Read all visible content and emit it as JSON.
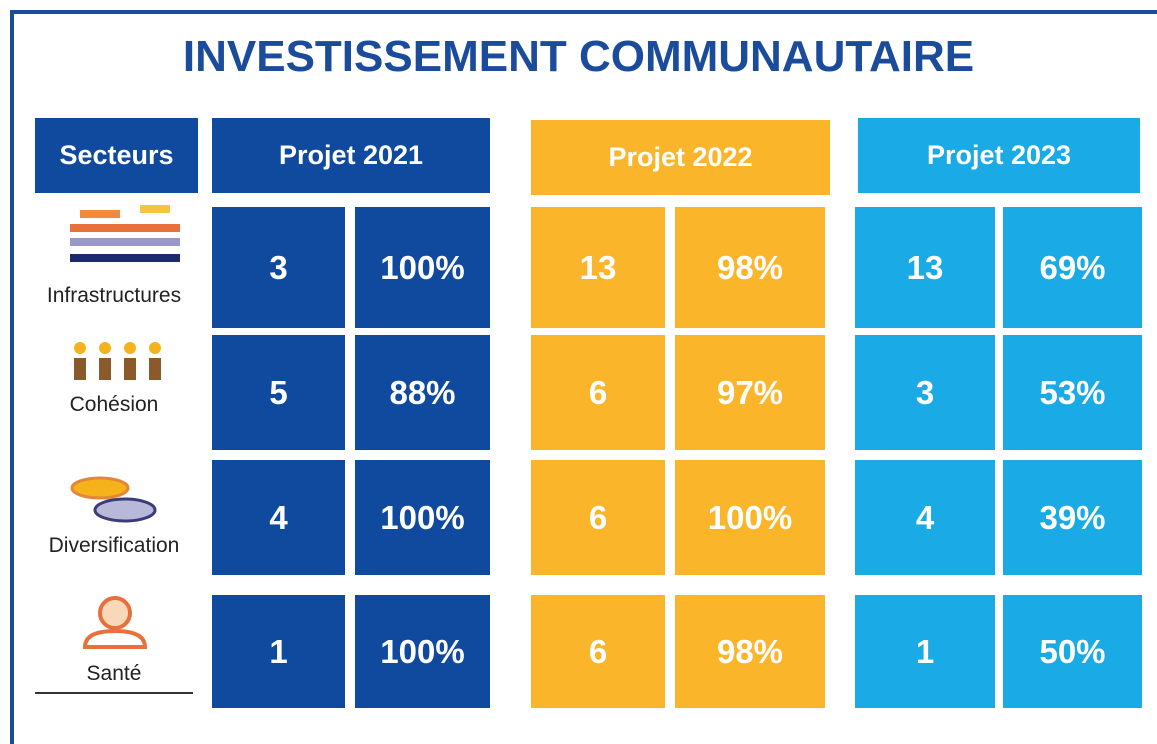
{
  "header": {
    "title": "INVESTISSEMENT COMMUNAUTAIRE"
  },
  "table": {
    "sector_header": "Secteurs",
    "columns": [
      "Projet 2021",
      "Projet 2022",
      "Projet 2023"
    ],
    "rows": [
      {
        "sector": "Infrastructures",
        "cells": [
          [
            "3",
            "100%"
          ],
          [
            "13",
            "98%"
          ],
          [
            "13",
            "69%"
          ]
        ]
      },
      {
        "sector": "Cohésion",
        "cells": [
          [
            "5",
            "88%"
          ],
          [
            "6",
            "97%"
          ],
          [
            "3",
            "53%"
          ]
        ]
      },
      {
        "sector": "Diversification",
        "cells": [
          [
            "4",
            "100%"
          ],
          [
            "6",
            "100%"
          ],
          [
            "4",
            "39%"
          ]
        ]
      },
      {
        "sector": "Santé",
        "cells": [
          [
            "1",
            "100%"
          ],
          [
            "6",
            "98%"
          ],
          [
            "1",
            "50%"
          ]
        ]
      }
    ]
  }
}
